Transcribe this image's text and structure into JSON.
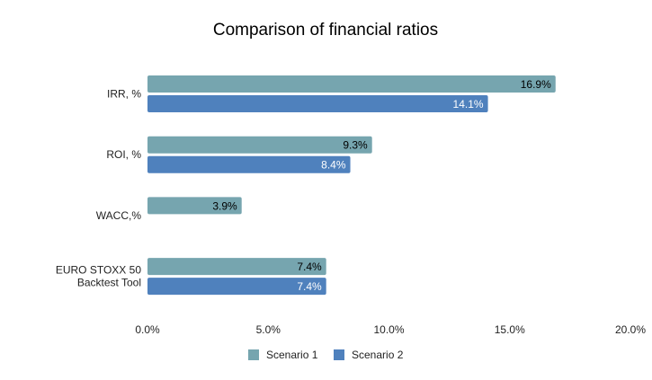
{
  "chart_data": {
    "type": "bar",
    "orientation": "horizontal",
    "title": "Comparison of financial ratios",
    "xlabel": "",
    "ylabel": "",
    "categories": [
      [
        "IRR, %"
      ],
      [
        "ROI, %"
      ],
      [
        "WACC,%"
      ],
      [
        "EURO STOXX 50",
        "Backtest Tool"
      ]
    ],
    "series": [
      {
        "name": "Scenario 1",
        "color": "#76A5AF",
        "label_color": "#000000",
        "values": [
          16.9,
          9.3,
          3.9,
          7.4
        ],
        "labels": [
          "16.9%",
          "9.3%",
          "3.9%",
          "7.4%"
        ]
      },
      {
        "name": "Scenario 2",
        "color": "#4F81BD",
        "label_color": "#ffffff",
        "values": [
          14.1,
          8.4,
          null,
          7.4
        ],
        "labels": [
          "14.1%",
          "8.4%",
          "",
          "7.4%"
        ]
      }
    ],
    "xlim": [
      0,
      20
    ],
    "xticks": [
      0,
      5,
      10,
      15,
      20
    ],
    "xtick_labels": [
      "0.0%",
      "5.0%",
      "10.0%",
      "15.0%",
      "20.0%"
    ],
    "grid": false,
    "legend_position": "bottom"
  }
}
